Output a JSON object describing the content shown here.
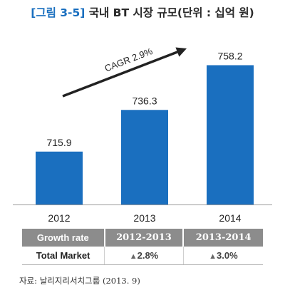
{
  "title": {
    "tag": "[그림 3-5]",
    "text": "국내 BT 시장 규모(단위 : 십억 원)"
  },
  "chart_data": {
    "type": "bar",
    "categories": [
      "2012",
      "2013",
      "2014"
    ],
    "values": [
      715.9,
      736.3,
      758.2
    ],
    "data_labels": [
      "715.9",
      "736.3",
      "758.2"
    ],
    "annotation": "CAGR 2.9%",
    "ylim": [
      690,
      765
    ],
    "grid": false,
    "colors": {
      "bar": "#1a6fbf",
      "arrow": "#222222",
      "axis": "#999999"
    }
  },
  "table": {
    "header": [
      "Growth rate",
      "2012-2013",
      "2013-2014"
    ],
    "row": {
      "label": "Total Market",
      "values": [
        {
          "icon": "triangle-up-icon",
          "text": "2.8%"
        },
        {
          "icon": "triangle-up-icon",
          "text": "3.0%"
        }
      ]
    }
  },
  "source": "자료: 날리지리서치그룹 (2013. 9)"
}
